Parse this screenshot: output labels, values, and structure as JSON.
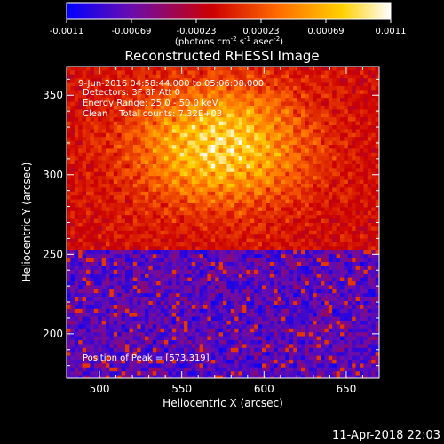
{
  "chart_data": {
    "type": "heatmap",
    "title": "Reconstructed RHESSI Image",
    "xlabel": "Heliocentric X (arcsec)",
    "ylabel": "Heliocentric Y (arcsec)",
    "xlim": [
      480,
      670
    ],
    "ylim": [
      172,
      368
    ],
    "x_ticks": [
      500,
      550,
      600,
      650
    ],
    "y_ticks": [
      200,
      250,
      300,
      350
    ],
    "colorbar": {
      "min": -0.0011,
      "max": 0.0011,
      "ticks": [
        "-0.0011",
        "-0.00069",
        "-0.00023",
        "0.00023",
        "0.00069",
        "0.0011"
      ],
      "unit_label": "(photons cm",
      "unit_exp1": "-2",
      "unit_mid": " s",
      "unit_exp2": "-1",
      "unit_mid2": " asec",
      "unit_exp3": "-2",
      "unit_end": ")",
      "colormap": [
        "#0000ff",
        "#6a0dad",
        "#cc0000",
        "#ff6a00",
        "#ffd000",
        "#ffffff"
      ]
    },
    "info_lines": [
      "9-Jun-2016 04:58:44.000 to 05:06:08.000",
      "Detectors: 3F 8F  Att 0",
      "Energy Range: 25.0 - 50.0 keV",
      "Clean    Total counts: 7.32E+03"
    ],
    "peak_label": "Position of Peak = [573,319]",
    "peak": [
      573,
      319
    ],
    "grid": false
  },
  "footer": {
    "timestamp": "11-Apr-2018 22:03"
  }
}
